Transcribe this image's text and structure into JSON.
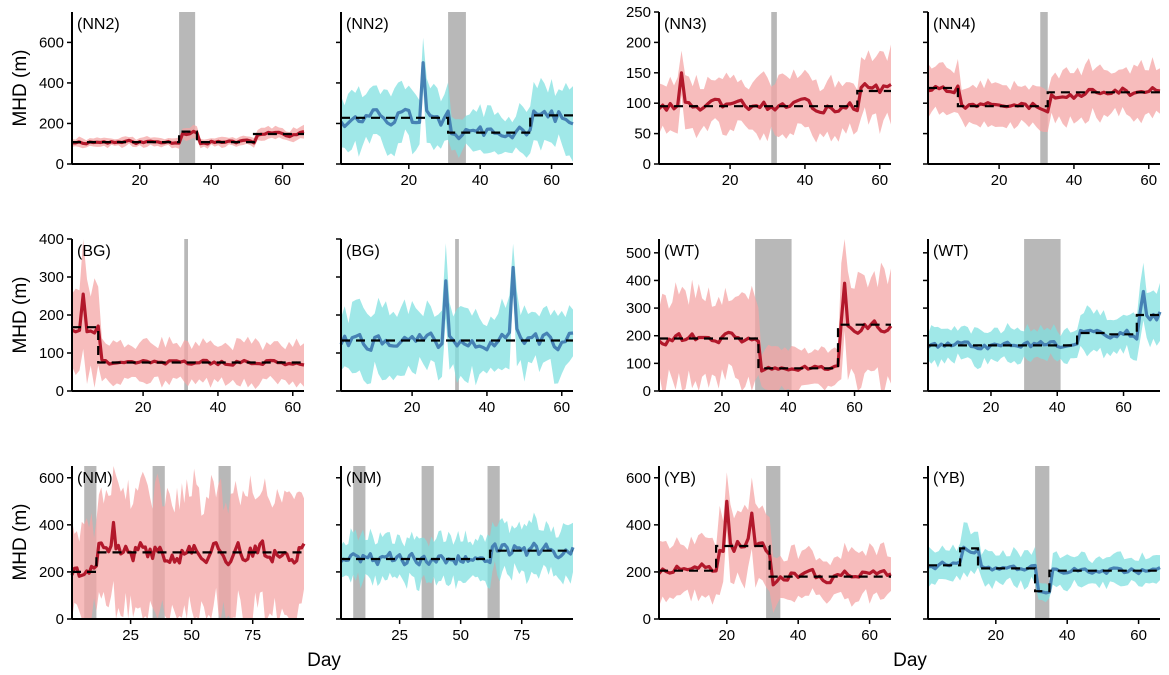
{
  "figure": {
    "y_axis_title": "MHD (m)",
    "x_axis_title": "Day"
  },
  "colors": {
    "red_line": "#b2182b",
    "red_band": "#f4a6a6",
    "blue_line": "#4682b4",
    "blue_band": "#80e0e0",
    "shade": "#b0b0b0",
    "dashed": "#000000"
  },
  "chart_data": [
    {
      "type": "line",
      "label": "(NN2)",
      "color": "red",
      "xlim": [
        1,
        66
      ],
      "ylim": [
        0,
        750
      ],
      "xticks": [
        20,
        40,
        60
      ],
      "yticks": [
        0,
        200,
        400,
        600
      ],
      "show_yticks": true,
      "shaded": [
        [
          31,
          35.5
        ]
      ],
      "segments": [
        [
          1,
          31,
          108
        ],
        [
          31,
          36,
          160
        ],
        [
          36,
          52,
          108
        ],
        [
          52,
          66,
          148
        ]
      ],
      "n": 66,
      "seed": 11,
      "noise": 0.12,
      "band": 0.2,
      "spikes": []
    },
    {
      "type": "line",
      "label": "(NN2)",
      "color": "blue",
      "xlim": [
        1,
        66
      ],
      "ylim": [
        0,
        750
      ],
      "xticks": [
        20,
        40,
        60
      ],
      "yticks": [
        0,
        200,
        400,
        600
      ],
      "show_yticks": false,
      "shaded": [
        [
          31,
          36
        ]
      ],
      "segments": [
        [
          1,
          31,
          228
        ],
        [
          31,
          54,
          155
        ],
        [
          54,
          66,
          240
        ]
      ],
      "n": 66,
      "seed": 12,
      "noise": 0.28,
      "band": 0.6,
      "spikes": [
        [
          24,
          500
        ]
      ]
    },
    {
      "type": "line",
      "label": "(NN3)",
      "color": "red",
      "xlim": [
        1,
        63
      ],
      "ylim": [
        0,
        250
      ],
      "xticks": [
        20,
        40,
        60
      ],
      "yticks": [
        0,
        50,
        100,
        150,
        200,
        250
      ],
      "show_yticks": true,
      "shaded": [
        [
          31,
          32.5
        ]
      ],
      "segments": [
        [
          1,
          54,
          95
        ],
        [
          54,
          63,
          120
        ]
      ],
      "n": 63,
      "seed": 13,
      "noise": 0.14,
      "band": 0.45,
      "spikes": [
        [
          7,
          150
        ]
      ]
    },
    {
      "type": "line",
      "label": "(NN4)",
      "color": "red",
      "xlim": [
        1,
        63
      ],
      "ylim": [
        0,
        250
      ],
      "xticks": [
        20,
        40,
        60
      ],
      "yticks": [
        0,
        50,
        100,
        150,
        200,
        250
      ],
      "show_yticks": false,
      "shaded": [
        [
          31,
          33
        ]
      ],
      "segments": [
        [
          1,
          9,
          125
        ],
        [
          9,
          33,
          95
        ],
        [
          33,
          63,
          118
        ]
      ],
      "n": 63,
      "seed": 14,
      "noise": 0.12,
      "band": 0.35,
      "spikes": []
    },
    {
      "type": "line",
      "label": "(BG)",
      "color": "red",
      "xlim": [
        1,
        63
      ],
      "ylim": [
        0,
        400
      ],
      "xticks": [
        20,
        40,
        60
      ],
      "yticks": [
        0,
        100,
        200,
        300,
        400
      ],
      "show_yticks": true,
      "shaded": [
        [
          31,
          32
        ]
      ],
      "segments": [
        [
          1,
          8,
          168
        ],
        [
          8,
          63,
          75
        ]
      ],
      "n": 63,
      "seed": 21,
      "noise": 0.15,
      "band": 0.7,
      "spikes": [
        [
          4,
          255
        ]
      ]
    },
    {
      "type": "line",
      "label": "(BG)",
      "color": "blue",
      "xlim": [
        1,
        63
      ],
      "ylim": [
        0,
        400
      ],
      "xticks": [
        20,
        40,
        60
      ],
      "yticks": [
        0,
        100,
        200,
        300,
        400
      ],
      "show_yticks": false,
      "shaded": [
        [
          31.5,
          32.5
        ]
      ],
      "segments": [
        [
          1,
          63,
          133
        ]
      ],
      "n": 63,
      "seed": 22,
      "noise": 0.25,
      "band": 0.6,
      "spikes": [
        [
          29,
          290
        ],
        [
          47,
          325
        ]
      ]
    },
    {
      "type": "line",
      "label": "(WT)",
      "color": "red",
      "xlim": [
        1,
        71
      ],
      "ylim": [
        0,
        550
      ],
      "xticks": [
        20,
        40,
        60
      ],
      "yticks": [
        0,
        100,
        200,
        300,
        400,
        500
      ],
      "show_yticks": true,
      "shaded": [
        [
          30,
          41
        ]
      ],
      "segments": [
        [
          1,
          31,
          190
        ],
        [
          31,
          55,
          82
        ],
        [
          55,
          71,
          240
        ]
      ],
      "n": 71,
      "seed": 31,
      "noise": 0.15,
      "band": 0.8,
      "spikes": [
        [
          57,
          390
        ]
      ]
    },
    {
      "type": "line",
      "label": "(WT)",
      "color": "blue",
      "xlim": [
        1,
        71
      ],
      "ylim": [
        0,
        550
      ],
      "xticks": [
        20,
        40,
        60
      ],
      "yticks": [
        0,
        100,
        200,
        300,
        400,
        500
      ],
      "show_yticks": false,
      "shaded": [
        [
          30,
          41
        ]
      ],
      "segments": [
        [
          1,
          46,
          165
        ],
        [
          46,
          55,
          210
        ],
        [
          55,
          64,
          205
        ],
        [
          64,
          71,
          275
        ]
      ],
      "n": 71,
      "seed": 32,
      "noise": 0.13,
      "band": 0.35,
      "spikes": [
        [
          66,
          360
        ]
      ]
    },
    {
      "type": "line",
      "label": "(NM)",
      "color": "red",
      "xlim": [
        1,
        96
      ],
      "ylim": [
        0,
        650
      ],
      "xticks": [
        25,
        50,
        75
      ],
      "yticks": [
        0,
        200,
        400,
        600
      ],
      "show_yticks": true,
      "shaded": [
        [
          6,
          11
        ],
        [
          34,
          39
        ],
        [
          61,
          66
        ]
      ],
      "segments": [
        [
          1,
          11,
          200
        ],
        [
          11,
          96,
          283
        ]
      ],
      "n": 96,
      "seed": 41,
      "noise": 0.22,
      "band": 0.9,
      "spikes": [
        [
          18,
          410
        ]
      ]
    },
    {
      "type": "line",
      "label": "(NM)",
      "color": "blue",
      "xlim": [
        1,
        96
      ],
      "ylim": [
        0,
        650
      ],
      "xticks": [
        25,
        50,
        75
      ],
      "yticks": [
        0,
        200,
        400,
        600
      ],
      "show_yticks": false,
      "shaded": [
        [
          6,
          11
        ],
        [
          34,
          39
        ],
        [
          61,
          66
        ]
      ],
      "segments": [
        [
          1,
          62,
          255
        ],
        [
          62,
          96,
          290
        ]
      ],
      "n": 96,
      "seed": 42,
      "noise": 0.15,
      "band": 0.35,
      "spikes": []
    },
    {
      "type": "line",
      "label": "(YB)",
      "color": "red",
      "xlim": [
        1,
        66
      ],
      "ylim": [
        0,
        650
      ],
      "xticks": [
        20,
        40,
        60
      ],
      "yticks": [
        0,
        200,
        400,
        600
      ],
      "show_yticks": true,
      "shaded": [
        [
          31,
          35
        ]
      ],
      "segments": [
        [
          1,
          17,
          205
        ],
        [
          17,
          32,
          310
        ],
        [
          32,
          66,
          180
        ]
      ],
      "n": 66,
      "seed": 51,
      "noise": 0.2,
      "band": 0.55,
      "spikes": [
        [
          20,
          500
        ],
        [
          27,
          450
        ]
      ]
    },
    {
      "type": "line",
      "label": "(YB)",
      "color": "blue",
      "xlim": [
        1,
        66
      ],
      "ylim": [
        0,
        650
      ],
      "xticks": [
        20,
        40,
        60
      ],
      "yticks": [
        0,
        200,
        400,
        600
      ],
      "show_yticks": false,
      "shaded": [
        [
          31,
          35
        ]
      ],
      "segments": [
        [
          1,
          10,
          228
        ],
        [
          10,
          15,
          300
        ],
        [
          15,
          31,
          215
        ],
        [
          31,
          35,
          118
        ],
        [
          35,
          66,
          205
        ]
      ],
      "n": 66,
      "seed": 52,
      "noise": 0.1,
      "band": 0.3,
      "spikes": []
    }
  ]
}
